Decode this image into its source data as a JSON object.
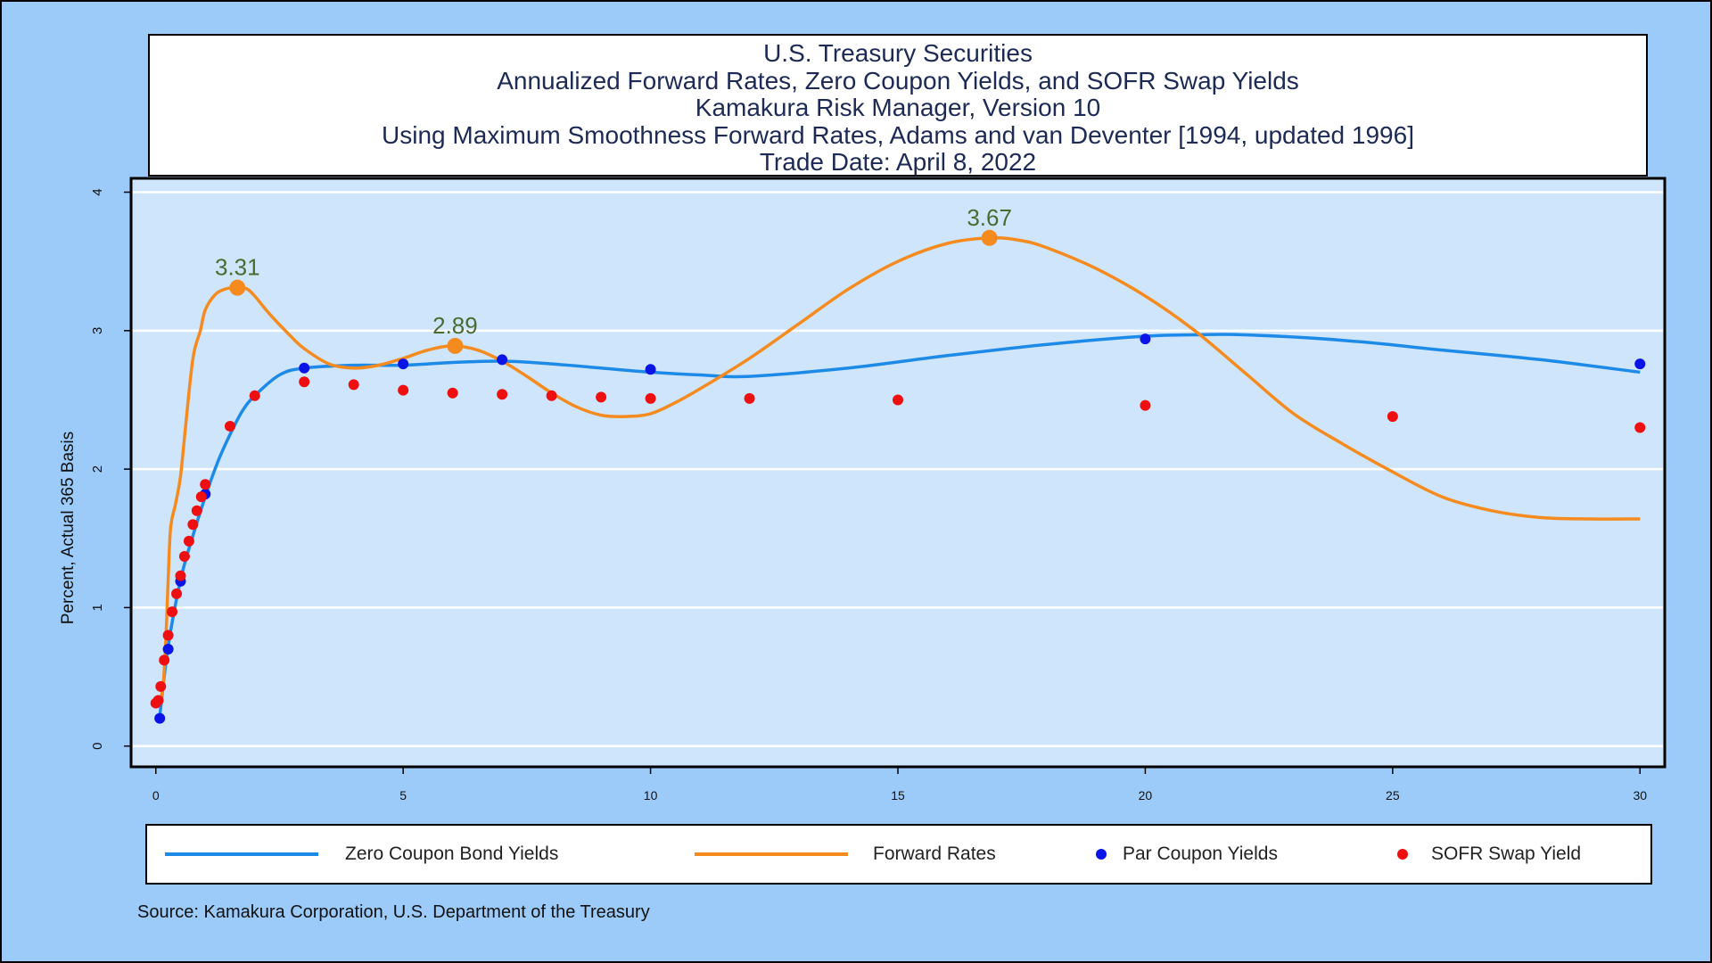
{
  "title_lines": [
    "U.S. Treasury Securities",
    "Annualized Forward Rates, Zero Coupon Yields, and SOFR Swap Yields",
    "Kamakura Risk Manager, Version 10",
    "Using Maximum Smoothness Forward Rates, Adams and van Deventer [1994, updated 1996]",
    "Trade Date: April 8, 2022"
  ],
  "source": "Source: Kamakura Corporation, U.S. Department of the Treasury",
  "colors": {
    "page_bg": "#9ccbfa",
    "plot_bg": "#cfe5fb",
    "zero": "#1d8ae8",
    "forward": "#f58b1f",
    "par": "#0a14e6",
    "sofr": "#ee0f10",
    "peak_label": "#4a6b32"
  },
  "legend": [
    {
      "label": "Zero Coupon Bond Yields",
      "kind": "line",
      "color": "#1d8ae8"
    },
    {
      "label": "Forward Rates",
      "kind": "line",
      "color": "#f58b1f"
    },
    {
      "label": "Par Coupon Yields",
      "kind": "dot",
      "color": "#0a14e6"
    },
    {
      "label": "SOFR Swap Yield",
      "kind": "dot",
      "color": "#ee0f10"
    }
  ],
  "chart_data": {
    "type": "line",
    "title": "Annualized Forward Rates, Zero Coupon Yields, and SOFR Swap Yields",
    "xlabel": "",
    "ylabel": "Percent, Actual 365 Basis",
    "xlim": [
      -0.5,
      30.5
    ],
    "ylim": [
      -0.15,
      4.1
    ],
    "xticks": [
      0,
      5,
      10,
      15,
      20,
      25,
      30
    ],
    "yticks": [
      0,
      1,
      2,
      3,
      4
    ],
    "grid": "horizontal",
    "series": [
      {
        "name": "Zero Coupon Bond Yields",
        "kind": "line",
        "color": "#1d8ae8",
        "x": [
          0.08,
          0.25,
          0.5,
          0.75,
          1.0,
          1.25,
          1.5,
          1.75,
          2.0,
          2.5,
          3.0,
          4.0,
          5.0,
          6.0,
          7.0,
          8.0,
          9.0,
          10.0,
          11.0,
          12.0,
          14.0,
          16.0,
          18.0,
          20.0,
          21.0,
          22.0,
          24.0,
          26.0,
          28.0,
          30.0
        ],
        "y": [
          0.22,
          0.72,
          1.2,
          1.52,
          1.8,
          2.05,
          2.25,
          2.42,
          2.53,
          2.68,
          2.73,
          2.75,
          2.75,
          2.77,
          2.78,
          2.76,
          2.73,
          2.7,
          2.68,
          2.67,
          2.73,
          2.82,
          2.9,
          2.96,
          2.97,
          2.97,
          2.93,
          2.86,
          2.79,
          2.7
        ]
      },
      {
        "name": "Forward Rates",
        "kind": "line",
        "color": "#f58b1f",
        "x": [
          0.08,
          0.15,
          0.2,
          0.25,
          0.3,
          0.4,
          0.5,
          0.6,
          0.75,
          0.9,
          1.0,
          1.2,
          1.4,
          1.6,
          1.7,
          1.85,
          2.0,
          2.3,
          2.7,
          3.0,
          3.5,
          4.0,
          4.5,
          5.0,
          5.5,
          6.0,
          6.5,
          7.0,
          7.5,
          8.0,
          8.5,
          9.0,
          9.5,
          10.0,
          10.5,
          11.0,
          12.0,
          13.0,
          14.0,
          15.0,
          16.0,
          16.9,
          17.5,
          18.0,
          19.0,
          20.0,
          21.0,
          22.0,
          23.0,
          24.0,
          25.0,
          26.0,
          27.0,
          28.0,
          29.0,
          30.0
        ],
        "y": [
          0.3,
          0.45,
          0.75,
          1.2,
          1.58,
          1.75,
          1.95,
          2.3,
          2.8,
          3.0,
          3.15,
          3.26,
          3.3,
          3.31,
          3.31,
          3.3,
          3.25,
          3.12,
          2.97,
          2.87,
          2.76,
          2.73,
          2.75,
          2.8,
          2.86,
          2.89,
          2.86,
          2.78,
          2.67,
          2.55,
          2.45,
          2.39,
          2.38,
          2.4,
          2.48,
          2.58,
          2.8,
          3.05,
          3.3,
          3.5,
          3.63,
          3.67,
          3.65,
          3.6,
          3.45,
          3.25,
          3.0,
          2.7,
          2.4,
          2.18,
          1.98,
          1.8,
          1.7,
          1.65,
          1.64,
          1.64
        ]
      },
      {
        "name": "Par Coupon Yields",
        "kind": "scatter",
        "color": "#0a14e6",
        "x": [
          0.08,
          0.25,
          0.5,
          1.0,
          3.0,
          5.0,
          7.0,
          10.0,
          20.0,
          30.0
        ],
        "y": [
          0.2,
          0.7,
          1.19,
          1.82,
          2.73,
          2.76,
          2.79,
          2.72,
          2.94,
          2.76
        ]
      },
      {
        "name": "SOFR Swap Yield",
        "kind": "scatter",
        "color": "#ee0f10",
        "x": [
          0.0,
          0.05,
          0.1,
          0.17,
          0.25,
          0.33,
          0.42,
          0.5,
          0.58,
          0.67,
          0.75,
          0.83,
          0.92,
          1.0,
          1.5,
          2.0,
          3.0,
          4.0,
          5.0,
          6.0,
          7.0,
          8.0,
          9.0,
          10.0,
          12.0,
          15.0,
          20.0,
          25.0,
          30.0
        ],
        "y": [
          0.31,
          0.33,
          0.43,
          0.62,
          0.8,
          0.97,
          1.1,
          1.23,
          1.37,
          1.48,
          1.6,
          1.7,
          1.8,
          1.89,
          2.31,
          2.53,
          2.63,
          2.61,
          2.57,
          2.55,
          2.54,
          2.53,
          2.52,
          2.51,
          2.51,
          2.5,
          2.46,
          2.38,
          2.3
        ]
      }
    ],
    "annotations": [
      {
        "label": "3.31",
        "x": 1.65,
        "y": 3.31
      },
      {
        "label": "2.89",
        "x": 6.05,
        "y": 2.89
      },
      {
        "label": "3.67",
        "x": 16.85,
        "y": 3.67
      }
    ]
  }
}
